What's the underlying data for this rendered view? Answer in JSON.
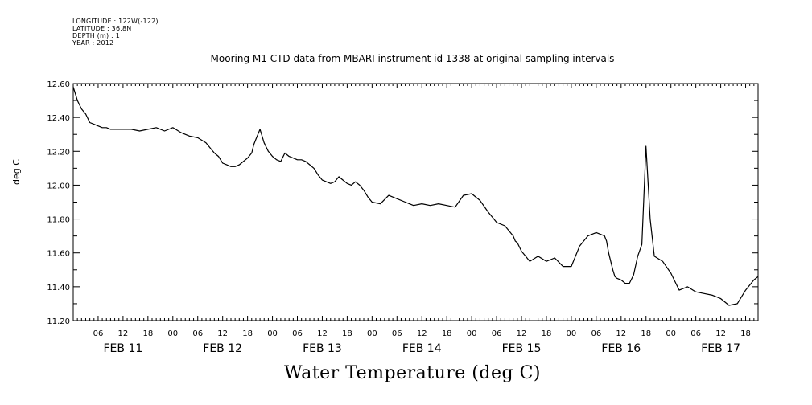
{
  "header": {
    "lines": [
      "LONGITUDE : 122W(-122)",
      "LATITUDE : 36.8N",
      "DEPTH (m) : 1",
      "YEAR : 2012"
    ]
  },
  "chart_data": {
    "type": "line",
    "title": "Mooring M1 CTD data from MBARI instrument id 1338 at original sampling intervals",
    "xlabel": "Water Temperature (deg C)",
    "ylabel": "deg C",
    "ylim": [
      11.2,
      12.6
    ],
    "yticks": [
      "11.20",
      "11.40",
      "11.60",
      "11.80",
      "12.00",
      "12.20",
      "12.40",
      "12.60"
    ],
    "xlim_hours": [
      0,
      165
    ],
    "hour_tick_labels": [
      "06",
      "12",
      "18",
      "00",
      "06",
      "12",
      "18",
      "00",
      "06",
      "12",
      "18",
      "00",
      "06",
      "12",
      "18",
      "00",
      "06",
      "12",
      "18",
      "00",
      "06",
      "12",
      "18",
      "00",
      "06",
      "12",
      "18"
    ],
    "day_labels": [
      "FEB 11",
      "FEB 12",
      "FEB 13",
      "FEB 14",
      "FEB 15",
      "FEB 16",
      "FEB 17"
    ],
    "grid": false,
    "series": [
      {
        "color": "#000000",
        "x": [
          0,
          0.5,
          1,
          2,
          3,
          4,
          5,
          6,
          7,
          8,
          9,
          10,
          12,
          14,
          16,
          18,
          20,
          22,
          24,
          26,
          28,
          30,
          32,
          33,
          34,
          35,
          36,
          37,
          38,
          39,
          40,
          41,
          42,
          43,
          43.5,
          44,
          45,
          46,
          47,
          48,
          49,
          50,
          51,
          52,
          53,
          54,
          55,
          56,
          57,
          58,
          58.5,
          59,
          60,
          61,
          62,
          63,
          64,
          65,
          66,
          67,
          68,
          69,
          70,
          71,
          72,
          74,
          76,
          78,
          80,
          82,
          84,
          86,
          88,
          90,
          92,
          94,
          96,
          98,
          100,
          102,
          104,
          106,
          106.5,
          107,
          108,
          109,
          110,
          112,
          114,
          116,
          118,
          120,
          122,
          124,
          126,
          128,
          128.5,
          129,
          129.5,
          130,
          130.5,
          131,
          132,
          133,
          134,
          135,
          136,
          137,
          138,
          139,
          140,
          142,
          144,
          146,
          148,
          150,
          152,
          154,
          156,
          158,
          160,
          162,
          164,
          165
        ],
        "y": [
          12.58,
          12.54,
          12.5,
          12.45,
          12.42,
          12.37,
          12.36,
          12.35,
          12.34,
          12.34,
          12.33,
          12.33,
          12.33,
          12.33,
          12.32,
          12.33,
          12.34,
          12.32,
          12.34,
          12.31,
          12.29,
          12.28,
          12.25,
          12.22,
          12.19,
          12.17,
          12.13,
          12.12,
          12.11,
          12.11,
          12.12,
          12.14,
          12.16,
          12.19,
          12.24,
          12.27,
          12.33,
          12.25,
          12.2,
          12.17,
          12.15,
          12.14,
          12.19,
          12.17,
          12.16,
          12.15,
          12.15,
          12.14,
          12.12,
          12.1,
          12.08,
          12.06,
          12.03,
          12.02,
          12.01,
          12.02,
          12.05,
          12.03,
          12.01,
          12.0,
          12.02,
          12.0,
          11.97,
          11.93,
          11.9,
          11.89,
          11.94,
          11.92,
          11.9,
          11.88,
          11.89,
          11.88,
          11.89,
          11.88,
          11.87,
          11.94,
          11.95,
          11.91,
          11.84,
          11.78,
          11.76,
          11.7,
          11.67,
          11.66,
          11.61,
          11.58,
          11.55,
          11.58,
          11.55,
          11.57,
          11.52,
          11.52,
          11.64,
          11.7,
          11.72,
          11.7,
          11.67,
          11.6,
          11.55,
          11.5,
          11.46,
          11.45,
          11.44,
          11.42,
          11.42,
          11.47,
          11.58,
          11.65,
          12.23,
          11.8,
          11.58,
          11.55,
          11.48,
          11.38,
          11.4,
          11.37,
          11.36,
          11.35,
          11.33,
          11.29,
          11.3,
          11.38,
          11.44,
          11.46
        ]
      }
    ]
  }
}
